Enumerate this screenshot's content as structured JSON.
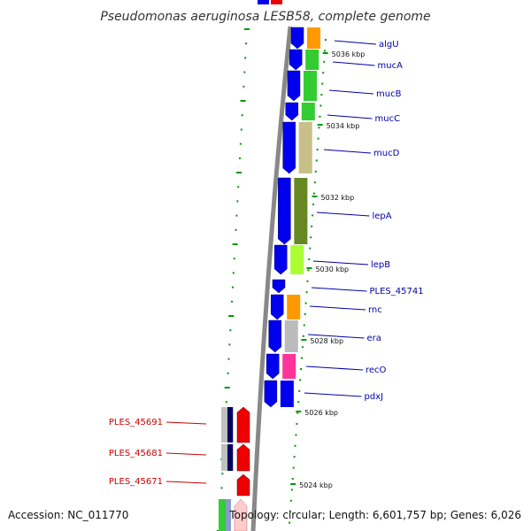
{
  "title": "Pseudomonas aeruginosa LESB58, complete genome",
  "footer": {
    "accession": "Accession: NC_011770",
    "topology": "Topology: circular; Length: 6,601,757 bp; Genes: 6,026"
  },
  "colors": {
    "forward_strand_gene": "#0000ee",
    "reverse_strand_gene": "#ee0000",
    "right_label": "#0000aa",
    "left_label": "#cc0000",
    "tick": "#009900",
    "backbone": "#888888"
  },
  "scale_labels": [
    "5036 kbp",
    "5034 kbp",
    "5032 kbp",
    "5030 kbp",
    "5028 kbp",
    "5026 kbp",
    "5024 kbp"
  ],
  "right_genes": [
    {
      "name": "algU",
      "cog_color": "#ff9900"
    },
    {
      "name": "mucA",
      "cog_color": "#33cc33"
    },
    {
      "name": "mucB",
      "cog_color": "#33cc33"
    },
    {
      "name": "mucC",
      "cog_color": "#33cc33"
    },
    {
      "name": "mucD",
      "cog_color": "#c8c088"
    },
    {
      "name": "lepA",
      "cog_color": "#668822"
    },
    {
      "name": "lepB",
      "cog_color": "#aaff33"
    },
    {
      "name": "PLES_45741",
      "cog_color": ""
    },
    {
      "name": "rnc",
      "cog_color": "#ff9900"
    },
    {
      "name": "era",
      "cog_color": "#bbbbbb"
    },
    {
      "name": "recO",
      "cog_color": "#ff3399"
    },
    {
      "name": "pdxJ",
      "cog_color": "#0000ee"
    }
  ],
  "left_genes": [
    {
      "name": "PLES_45691",
      "cog_color": "#c0c0c0"
    },
    {
      "name": "PLES_45681",
      "cog_color": "#c0c0c0"
    },
    {
      "name": "PLES_45671",
      "cog_color": ""
    }
  ]
}
